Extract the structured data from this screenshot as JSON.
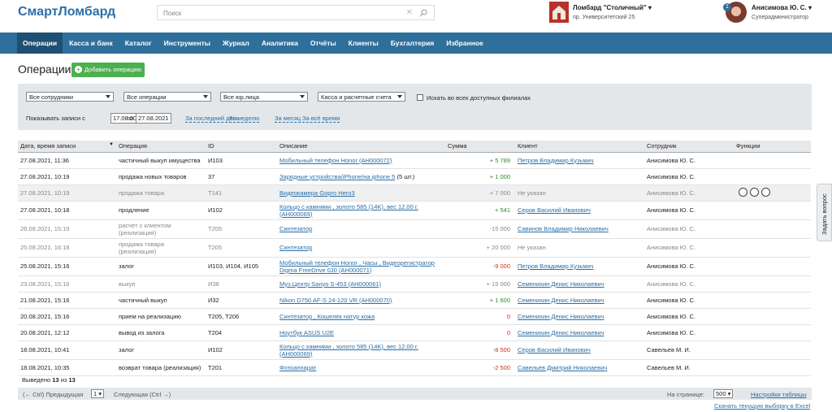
{
  "header": {
    "logo": "СмартЛомбард",
    "search_placeholder": "Поиск",
    "branch_name": "Ломбард \"Столичный\"",
    "branch_address": "пр. Университетский 25",
    "notifications": "1",
    "user_name": "Анисимова Ю. С.",
    "user_role": "Суперадминистратор"
  },
  "nav": [
    "Операции",
    "Касса и банк",
    "Каталог",
    "Инструменты",
    "Журнал",
    "Аналитика",
    "Отчёты",
    "Клиенты",
    "Бухгалтерия",
    "Избранное"
  ],
  "page": {
    "title": "Операции",
    "add_button": "Добавить операцию"
  },
  "filters": {
    "selects": [
      "Все сотрудники",
      "Все операции",
      "Все юр.лица",
      "Касса и расчетные счета"
    ],
    "checkbox": "Искать во всех доступных филиалах",
    "date_label": "Показывать записи с",
    "date_from": "17.08.2021",
    "date_to_label": "по",
    "date_to": "27.08.2021",
    "quick_links": [
      "За последний день",
      "За неделю",
      "За месяц",
      "За всё время"
    ]
  },
  "table": {
    "columns": [
      "Дата, время записи",
      "Операция",
      "ID",
      "Описание",
      "Сумма",
      "Клиент",
      "Сотрудник",
      "Функции"
    ],
    "rows": [
      {
        "date": "27.08.2021, 11:36",
        "operation": "частичный выкуп имущества",
        "id": "И103",
        "description": "Мобильный телефон Honor (AH000072)",
        "amount": "+ 5 789",
        "client": "Петров Владимир Кузьмич",
        "employee": "Анисимова Ю. С."
      },
      {
        "date": "27.08.2021, 10:19",
        "operation": "продажа новых товаров",
        "id": "37",
        "description": "Зарядные устройства/iPhone/на iphone 5",
        "note": "(5 шт.)",
        "amount": "+ 1 000",
        "employee": "Анисимова Ю. С."
      },
      {
        "date": "27.08.2021, 10:19",
        "operation": "продажа товара",
        "id": "T141",
        "description": "Видеокамера Gopro Hero3",
        "amount": "+ 7 000",
        "client_plain": "Не указан",
        "employee": "Анисимова Ю. С."
      },
      {
        "date": "27.08.2021, 10:18",
        "operation": "продление",
        "id": "И102",
        "description": "Кольцо с камнями , золото 585 (14K), вес 12.00 г. (AH000069)",
        "amount": "+ 541",
        "client": "Серов Василий Иванович",
        "employee": "Анисимова Ю. С."
      },
      {
        "date": "26.08.2021, 15:19",
        "operation": "расчёт с клиентом (реализация)",
        "id": "T205",
        "description": "Синтезатор",
        "amount": "-15 000",
        "client": "Савинов Владимир Николаевич",
        "employee": "Анисимова Ю. С."
      },
      {
        "date": "25.08.2021, 16:18",
        "operation": "продажа товара (реализация)",
        "id": "T205",
        "description": "Синтезатор",
        "amount": "+ 20 000",
        "client_plain": "Не указан",
        "employee": "Анисимова Ю. С."
      },
      {
        "date": "25.08.2021, 15:16",
        "operation": "залог",
        "id": "И103, И104, И105",
        "description": "Мобильный телефон Honor , Часы , Видеорегистратор Digma FreeDrive 0J0 (AH000071)",
        "amount": "-9 000",
        "client": "Петров Владимир Кузьмич",
        "employee": "Анисимова Ю. С."
      },
      {
        "date": "23.08.2021, 15:16",
        "operation": "выкуп",
        "id": "И38",
        "description": "Муз.Центр Sanyo S-453 (AH000061)",
        "amount": "+ 15 000",
        "client": "Семенихин Денис Николаевич",
        "employee": "Анисимова Ю. С."
      },
      {
        "date": "21.08.2021, 15:16",
        "operation": "частичный выкуп",
        "id": "И32",
        "description": "Nikon D750 AF-S 24-120 VR (AH000070)",
        "amount": "+ 1 600",
        "client": "Семенихин Денис Николаевич",
        "employee": "Анисимова Ю. С."
      },
      {
        "date": "20.08.2021, 15:16",
        "operation": "прием на реализацию",
        "id": "T205, T206",
        "description": "Синтезатор , Кошелек натур кожа",
        "amount": "0",
        "client": "Семенихин Денис Николаевич",
        "employee": "Анисимова Ю. С."
      },
      {
        "date": "20.08.2021, 12:12",
        "operation": "вывод из залога",
        "id": "T204",
        "description": "Ноутбук ASUS U2E",
        "amount": "0",
        "client": "Семенихин Денис Николаевич",
        "employee": "Анисимова Ю. С."
      },
      {
        "date": "18.08.2021, 10:41",
        "operation": "залог",
        "id": "И102",
        "description": "Кольцо с камнями , золото 585 (14K), вес 12.00 г. (AH000069)",
        "amount": "-8 500",
        "client": "Серов Василий Иванович",
        "employee": "Савельев М. И."
      },
      {
        "date": "18.08.2021, 10:35",
        "operation": "возврат товара (реализация)",
        "id": "T201",
        "description": "Фотоаппарат",
        "amount": "-2 500",
        "client": "Савельев Дмитрий Николаевич",
        "employee": "Савельев М. И."
      }
    ]
  },
  "footer": {
    "shown_prefix": "Выведено",
    "shown": "13",
    "shown_of": "из",
    "total": "13",
    "prev": "(← Ctrl) Предыдущая",
    "page": "1",
    "next": "Следующая (Ctrl →)",
    "per_page_label": "На странице:",
    "per_page": "500",
    "settings": "Настройки таблицы",
    "export": "Скачать текущую выборку в Excel"
  },
  "side_tab": "Задать вопрос"
}
